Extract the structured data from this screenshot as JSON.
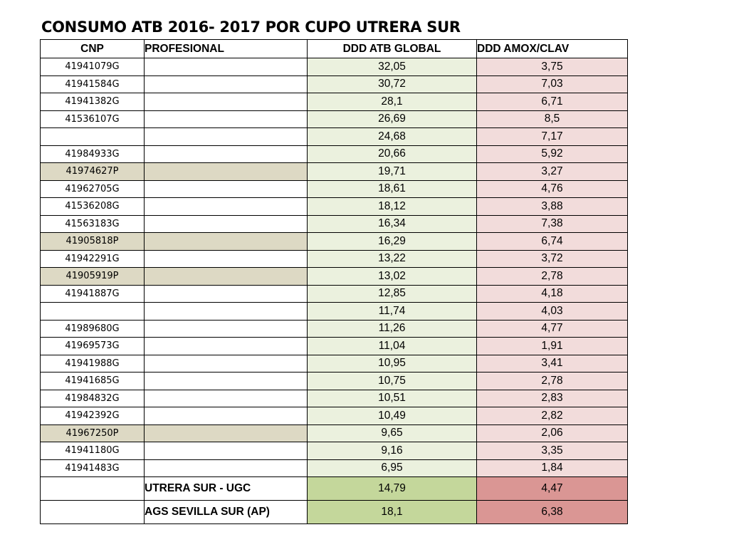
{
  "title": "CONSUMO ATB 2016- 2017 POR CUPO UTRERA SUR",
  "headers": {
    "cnp": "CNP",
    "profesional": "PROFESIONAL",
    "ddd_atb": "DDD ATB GLOBAL",
    "ddd_amox": "DDD AMOX/CLAV"
  },
  "rows": [
    {
      "cnp": "41941079G",
      "profesional": "",
      "atb": "32,05",
      "amox": "3,75",
      "highlight": false
    },
    {
      "cnp": "41941584G",
      "profesional": "",
      "atb": "30,72",
      "amox": "7,03",
      "highlight": false
    },
    {
      "cnp": "41941382G",
      "profesional": "",
      "atb": "28,1",
      "amox": "6,71",
      "highlight": false
    },
    {
      "cnp": "41536107G",
      "profesional": "",
      "atb": "26,69",
      "amox": "8,5",
      "highlight": false
    },
    {
      "cnp": "",
      "profesional": "",
      "atb": "24,68",
      "amox": "7,17",
      "highlight": false
    },
    {
      "cnp": "41984933G",
      "profesional": "",
      "atb": "20,66",
      "amox": "5,92",
      "highlight": false
    },
    {
      "cnp": "41974627P",
      "profesional": "",
      "atb": "19,71",
      "amox": "3,27",
      "highlight": true
    },
    {
      "cnp": "41962705G",
      "profesional": "",
      "atb": "18,61",
      "amox": "4,76",
      "highlight": false
    },
    {
      "cnp": "41536208G",
      "profesional": "",
      "atb": "18,12",
      "amox": "3,88",
      "highlight": false
    },
    {
      "cnp": "41563183G",
      "profesional": "",
      "atb": "16,34",
      "amox": "7,38",
      "highlight": false
    },
    {
      "cnp": "41905818P",
      "profesional": "",
      "atb": "16,29",
      "amox": "6,74",
      "highlight": true
    },
    {
      "cnp": "41942291G",
      "profesional": "",
      "atb": "13,22",
      "amox": "3,72",
      "highlight": false
    },
    {
      "cnp": "41905919P",
      "profesional": "",
      "atb": "13,02",
      "amox": "2,78",
      "highlight": true
    },
    {
      "cnp": "41941887G",
      "profesional": "",
      "atb": "12,85",
      "amox": "4,18",
      "highlight": false
    },
    {
      "cnp": "",
      "profesional": "",
      "atb": "11,74",
      "amox": "4,03",
      "highlight": false
    },
    {
      "cnp": "41989680G",
      "profesional": "",
      "atb": "11,26",
      "amox": "4,77",
      "highlight": false
    },
    {
      "cnp": "41969573G",
      "profesional": "",
      "atb": "11,04",
      "amox": "1,91",
      "highlight": false
    },
    {
      "cnp": "41941988G",
      "profesional": "",
      "atb": "10,95",
      "amox": "3,41",
      "highlight": false
    },
    {
      "cnp": "41941685G",
      "profesional": "",
      "atb": "10,75",
      "amox": "2,78",
      "highlight": false
    },
    {
      "cnp": "41984832G",
      "profesional": "",
      "atb": "10,51",
      "amox": "2,83",
      "highlight": false
    },
    {
      "cnp": "41942392G",
      "profesional": "",
      "atb": "10,49",
      "amox": "2,82",
      "highlight": false
    },
    {
      "cnp": "41967250P",
      "profesional": "",
      "atb": "9,65",
      "amox": "2,06",
      "highlight": true
    },
    {
      "cnp": "41941180G",
      "profesional": "",
      "atb": "9,16",
      "amox": "3,35",
      "highlight": false
    },
    {
      "cnp": "41941483G",
      "profesional": "",
      "atb": "6,95",
      "amox": "1,84",
      "highlight": false
    }
  ],
  "summary": [
    {
      "label": "UTRERA SUR - UGC",
      "atb": "14,79",
      "amox": "4,47"
    },
    {
      "label": "AGS SEVILLA SUR (AP)",
      "atb": "18,1",
      "amox": "6,38"
    }
  ],
  "colors": {
    "highlight_row": "#ddd9c4",
    "atb_cell": "#ebf1de",
    "amox_cell": "#f2dcdb",
    "summary_atb": "#c4d79b",
    "summary_amox": "#da9694"
  }
}
